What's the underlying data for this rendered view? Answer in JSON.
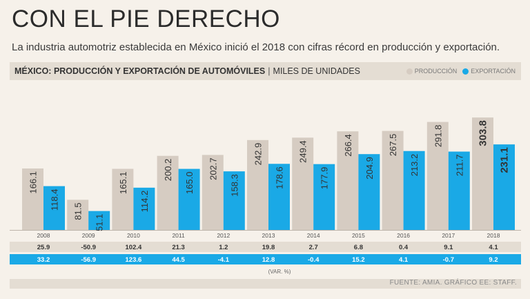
{
  "header": {
    "title": "CON EL PIE DERECHO",
    "subtitle": "La industria automotriz establecida en México inició el 2018 con cifras récord en producción y exportación."
  },
  "chart_heading": {
    "main": "MÉXICO: PRODUCCIÓN Y EXPORTACIÓN DE AUTOMÓVILES",
    "separator": "|",
    "units": "MILES DE UNIDADES"
  },
  "legend": {
    "production": "PRODUCCIÓN",
    "export": "EXPORTACIÓN"
  },
  "var_label": "(VAR. %)",
  "source": "FUENTE: AMIA. GRÁFICO EE: STAFF.",
  "colors": {
    "production": "#d6ccc2",
    "export": "#1aa9e6",
    "row_var_production": "#e4ddd3",
    "row_var_export": "#1aa9e6"
  },
  "chart_data": {
    "type": "bar",
    "title": "MÉXICO: PRODUCCIÓN Y EXPORTACIÓN DE AUTOMÓVILES",
    "ylabel": "MILES DE UNIDADES",
    "ylim": [
      0,
      320
    ],
    "grid": false,
    "legend_position": "top-right",
    "categories": [
      "2008",
      "2009",
      "2010",
      "2011",
      "2012",
      "2013",
      "2014",
      "2015",
      "2016",
      "2017",
      "2018"
    ],
    "series": [
      {
        "name": "PRODUCCIÓN",
        "values": [
          166.1,
          81.5,
          165.1,
          200.2,
          202.7,
          242.9,
          249.4,
          266.4,
          267.5,
          291.8,
          303.8
        ],
        "labels": [
          "166.1",
          "81.5",
          "165.1",
          "200.2",
          "202.7",
          "242.9",
          "249.4",
          "266.4",
          "267.5",
          "291.8",
          "303.8"
        ],
        "var_pct": [
          "25.9",
          "-50.9",
          "102.4",
          "21.3",
          "1.2",
          "19.8",
          "2.7",
          "6.8",
          "0.4",
          "9.1",
          "4.1"
        ]
      },
      {
        "name": "EXPORTACIÓN",
        "values": [
          118.4,
          51.1,
          114.2,
          165.0,
          158.3,
          178.6,
          177.9,
          204.9,
          213.2,
          211.7,
          231.1
        ],
        "labels": [
          "118.4",
          "51.1",
          "114.2",
          "165.0",
          "158.3",
          "178.6",
          "177.9",
          "204.9",
          "213.2",
          "211.7",
          "231.1"
        ],
        "var_pct": [
          "33.2",
          "-56.9",
          "123.6",
          "44.5",
          "-4.1",
          "12.8",
          "-0.4",
          "15.2",
          "4.1",
          "-0.7",
          "9.2"
        ]
      }
    ]
  }
}
